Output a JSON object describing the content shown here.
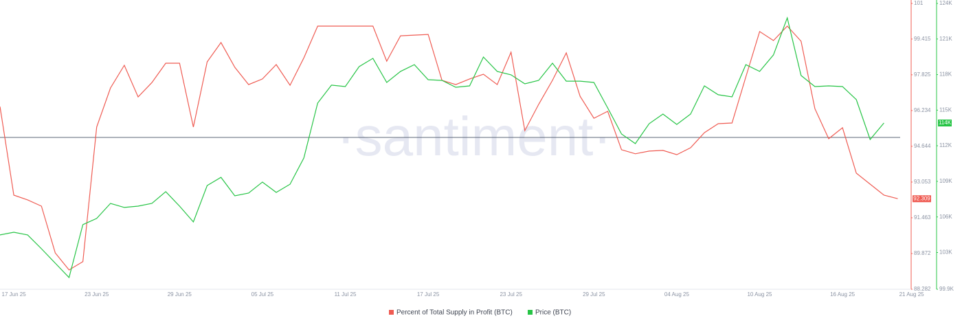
{
  "chart_data": {
    "type": "line",
    "watermark": "·santiment·",
    "categories": [
      null,
      "17 Jun 25",
      null,
      null,
      null,
      null,
      null,
      "23 Jun 25",
      null,
      null,
      null,
      null,
      null,
      "29 Jun 25",
      null,
      null,
      null,
      null,
      null,
      "05 Jul 25",
      null,
      null,
      null,
      null,
      null,
      "11 Jul 25",
      null,
      null,
      null,
      null,
      null,
      "17 Jul 25",
      null,
      null,
      null,
      null,
      null,
      "23 Jul 25",
      null,
      null,
      null,
      null,
      null,
      "29 Jul 25",
      null,
      null,
      null,
      null,
      null,
      "04 Aug 25",
      null,
      null,
      null,
      null,
      null,
      "10 Aug 25",
      null,
      null,
      null,
      null,
      null,
      "16 Aug 25",
      null,
      null,
      null,
      null,
      "21 Aug 25"
    ],
    "series": [
      {
        "name": "Percent of Total Supply in Profit (BTC)",
        "color": "#ef5b52",
        "values": [
          96.41,
          92.47,
          92.26,
          91.98,
          89.9,
          89.14,
          89.51,
          95.5,
          97.24,
          98.25,
          96.84,
          97.48,
          98.34,
          98.34,
          95.5,
          98.4,
          99.26,
          98.16,
          97.39,
          97.64,
          98.28,
          97.36,
          98.58,
          99.99,
          99.99,
          99.99,
          99.99,
          99.99,
          98.43,
          99.56,
          99.59,
          99.62,
          97.58,
          97.39,
          97.64,
          97.85,
          97.39,
          98.83,
          95.34,
          96.51,
          97.58,
          98.8,
          96.87,
          95.89,
          96.2,
          94.49,
          94.31,
          94.43,
          94.46,
          94.27,
          94.58,
          95.25,
          95.65,
          95.68,
          97.73,
          99.75,
          99.35,
          99.99,
          99.32,
          96.32,
          94.98,
          95.47,
          93.45,
          92.96,
          92.47,
          92.31,
          null
        ],
        "last_value_label": "92.309"
      },
      {
        "name": "Price (BTC)",
        "color": "#26c445",
        "axis": "y2",
        "values": [
          104480,
          104710,
          104480,
          103320,
          102100,
          100890,
          105350,
          105870,
          107140,
          106800,
          106910,
          107140,
          108130,
          106910,
          105580,
          108650,
          109340,
          107780,
          108010,
          108940,
          108070,
          108760,
          110970,
          115600,
          117110,
          116990,
          118670,
          119370,
          117340,
          118270,
          118840,
          117570,
          117510,
          116930,
          117050,
          119480,
          118270,
          117980,
          117220,
          117510,
          118960,
          117450,
          117450,
          117340,
          115190,
          112990,
          112180,
          113860,
          114670,
          113800,
          114670,
          117050,
          116300,
          116120,
          118840,
          118270,
          119660,
          122780,
          117920,
          116990,
          117050,
          116990,
          115890,
          112530,
          113920,
          null,
          null
        ],
        "last_value_label": "114K"
      }
    ],
    "ylim": [
      88.282,
      101
    ],
    "yticks": [
      101,
      99.415,
      97.825,
      96.234,
      94.644,
      93.053,
      91.463,
      89.872,
      88.282
    ],
    "y2lim": [
      99900,
      124000
    ],
    "y2ticks": [
      {
        "value": 124000,
        "label": "124K"
      },
      {
        "value": 121000,
        "label": "121K"
      },
      {
        "value": 118000,
        "label": "118K"
      },
      {
        "value": 115000,
        "label": "115K"
      },
      {
        "value": 112000,
        "label": "112K"
      },
      {
        "value": 109000,
        "label": "109K"
      },
      {
        "value": 106000,
        "label": "106K"
      },
      {
        "value": 103000,
        "label": "103K"
      },
      {
        "value": 99900,
        "label": "99.9K"
      }
    ],
    "reference_line": {
      "value": 95.04,
      "color": "#5b6577"
    },
    "grid": false,
    "legend": "bottom"
  }
}
